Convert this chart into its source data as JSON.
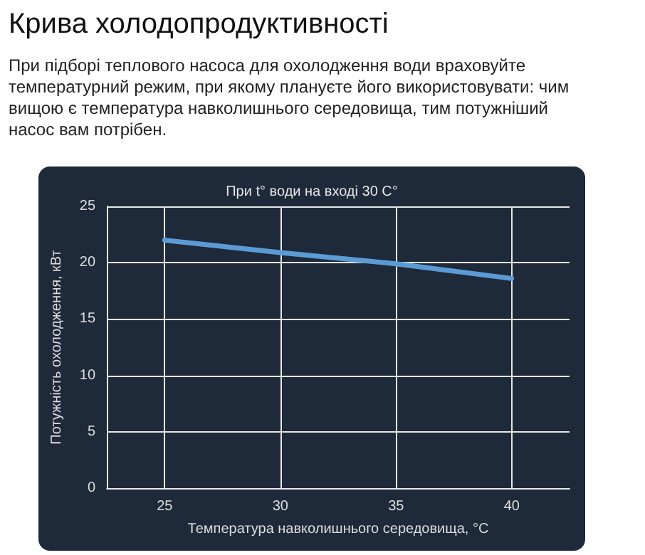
{
  "chart_data": {
    "type": "line",
    "title": "Крива холодопродуктивності",
    "subtitle": "При підборі теплового насоса для охолодження води враховуйте температурний режим, при якому плануєте його використовувати: чим вищою є температура навколишнього середовища, тим потужніший насос вам потрібен.",
    "annotations": [
      "При t° води на вході 30 C°"
    ],
    "xlabel": "Температура навколишнього середовища, °C",
    "ylabel": "Потужність охолодження, кВт",
    "x": [
      25,
      30,
      35,
      40
    ],
    "series": [
      {
        "color": "#5b9bd5",
        "values": [
          22,
          20.9,
          19.9,
          18.6
        ]
      }
    ],
    "xlim": [
      22.5,
      42.5
    ],
    "xticks": [
      25,
      30,
      35,
      40
    ],
    "ylim": [
      0,
      25
    ],
    "yticks": [
      0,
      5,
      10,
      15,
      20,
      25
    ],
    "grid": true,
    "line_style": "solid"
  }
}
